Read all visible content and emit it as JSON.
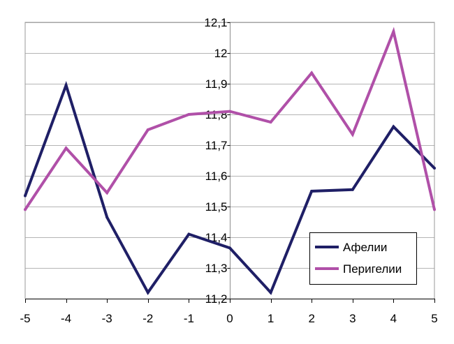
{
  "chart_data": {
    "type": "line",
    "title": "",
    "xlabel": "",
    "ylabel": "",
    "x": [
      -5,
      -4,
      -3,
      -2,
      -1,
      0,
      1,
      2,
      3,
      4,
      5
    ],
    "x_tick_labels": [
      "-5",
      "-4",
      "-3",
      "-2",
      "-1",
      "0",
      "1",
      "2",
      "3",
      "4",
      "5"
    ],
    "xlim": [
      -5,
      5
    ],
    "ylim": [
      11.2,
      12.1
    ],
    "y_ticks": [
      11.2,
      11.3,
      11.4,
      11.5,
      11.6,
      11.7,
      11.8,
      11.9,
      12.0,
      12.1
    ],
    "y_tick_labels": [
      "11,2",
      "11,3",
      "11,4",
      "11,5",
      "11,6",
      "11,7",
      "11,8",
      "11,9",
      "12",
      "12,1"
    ],
    "grid": "horizontal",
    "axes_cross_at": {
      "x": 0,
      "y": 11.2
    },
    "legend_position": "bottom-right",
    "series": [
      {
        "name": "Афелии",
        "color": "#1f1f66",
        "values": [
          11.535,
          11.895,
          11.465,
          11.22,
          11.41,
          11.365,
          11.22,
          11.55,
          11.555,
          11.76,
          11.625
        ]
      },
      {
        "name": "Перигелии",
        "color": "#b050a8",
        "values": [
          11.49,
          11.69,
          11.545,
          11.75,
          11.8,
          11.81,
          11.775,
          11.935,
          11.735,
          12.07,
          11.49
        ]
      }
    ]
  }
}
